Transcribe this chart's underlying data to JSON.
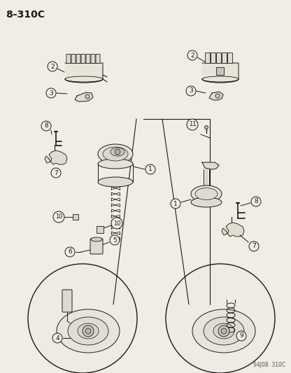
{
  "title": "8–310C",
  "footer": "94J08  310C",
  "bg_color": "#f0ede5",
  "line_color": "#1a1a1a",
  "label_font_size": 6.5,
  "title_font_size": 10,
  "fig_w": 4.16,
  "fig_h": 5.33,
  "dpi": 100
}
